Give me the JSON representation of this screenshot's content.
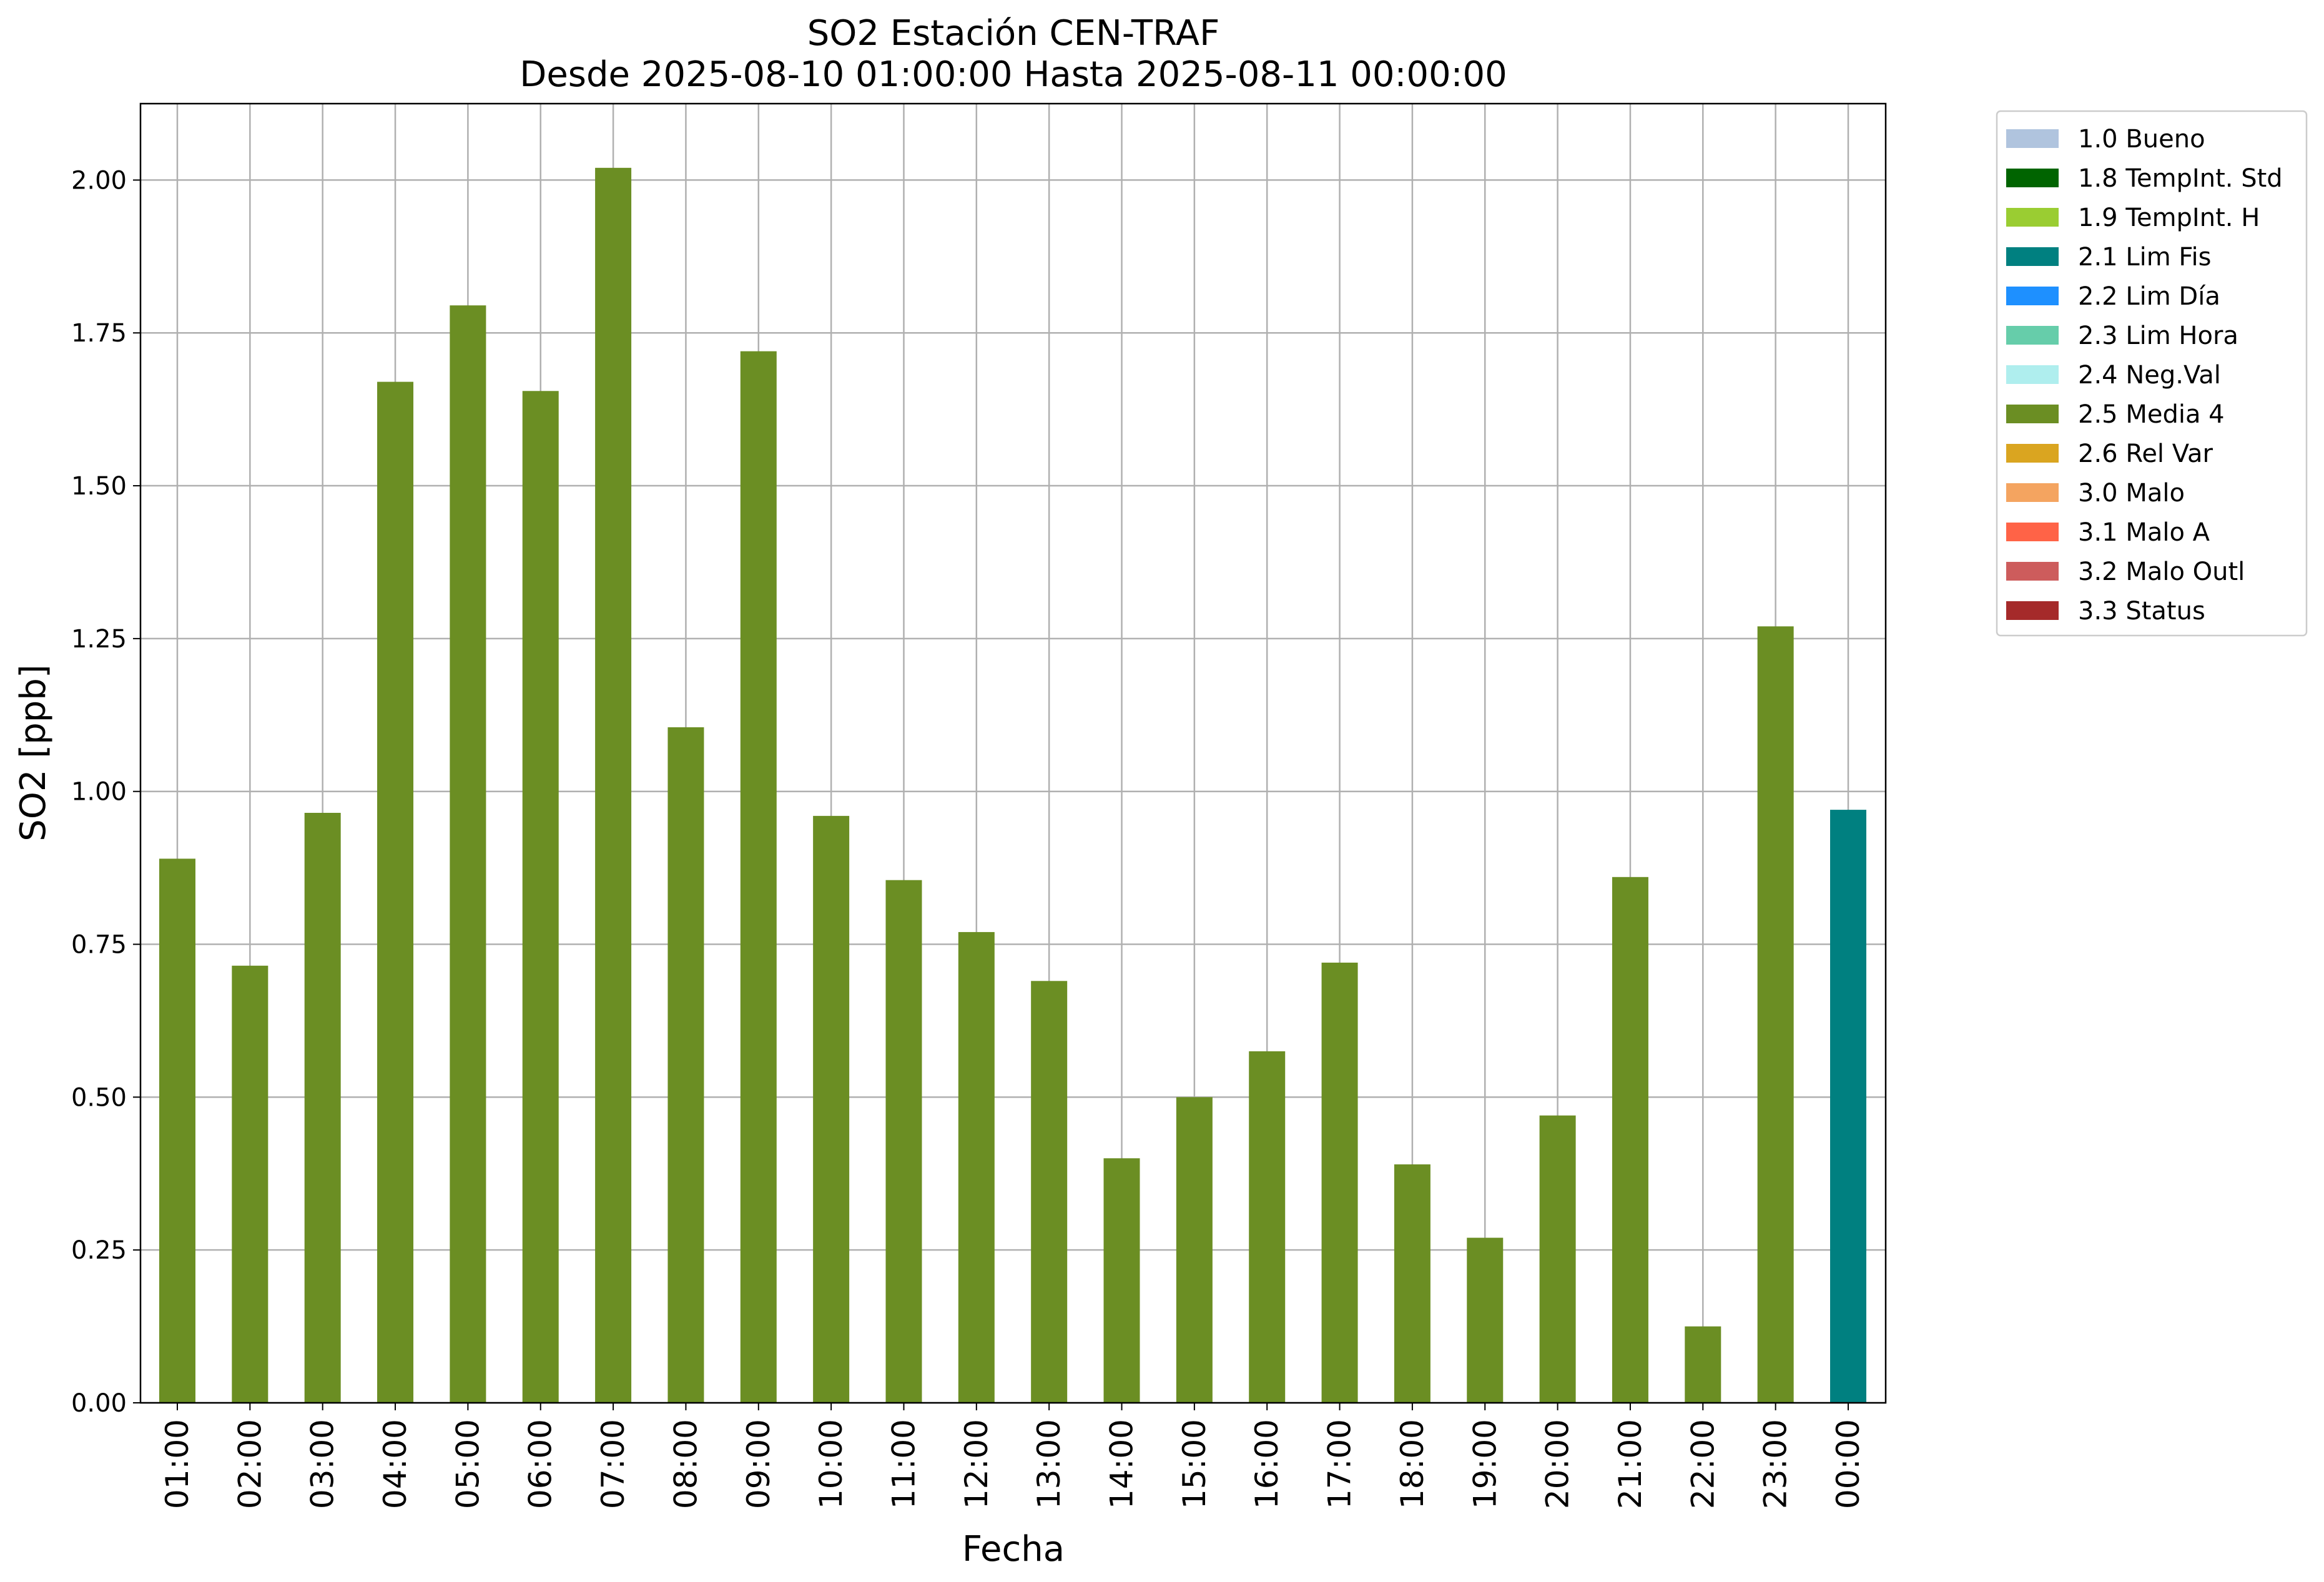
{
  "chart_data": {
    "type": "bar",
    "title": "SO2 Estación CEN-TRAF",
    "subtitle": "Desde 2025-08-10 01:00:00 Hasta 2025-08-11 00:00:00",
    "xlabel": "Fecha",
    "ylabel": "SO2 [ppb]",
    "ylim": [
      0,
      2.125
    ],
    "yticks": [
      "0.00",
      "0.25",
      "0.50",
      "0.75",
      "1.00",
      "1.25",
      "1.50",
      "1.75",
      "2.00"
    ],
    "grid": true,
    "legend_position": "outside-top-right",
    "categories": [
      "01:00",
      "02:00",
      "03:00",
      "04:00",
      "05:00",
      "06:00",
      "07:00",
      "08:00",
      "09:00",
      "10:00",
      "11:00",
      "12:00",
      "13:00",
      "14:00",
      "15:00",
      "16:00",
      "17:00",
      "18:00",
      "19:00",
      "20:00",
      "21:00",
      "22:00",
      "23:00",
      "00:00"
    ],
    "values": [
      0.89,
      0.715,
      0.965,
      1.67,
      1.795,
      1.655,
      2.02,
      1.105,
      1.72,
      0.96,
      0.855,
      0.77,
      0.69,
      0.4,
      0.5,
      0.575,
      0.72,
      0.39,
      0.27,
      0.47,
      0.86,
      0.125,
      1.27,
      0.97
    ],
    "bar_flags": [
      "2.5 Media 4",
      "2.5 Media 4",
      "2.5 Media 4",
      "2.5 Media 4",
      "2.5 Media 4",
      "2.5 Media 4",
      "2.5 Media 4",
      "2.5 Media 4",
      "2.5 Media 4",
      "2.5 Media 4",
      "2.5 Media 4",
      "2.5 Media 4",
      "2.5 Media 4",
      "2.5 Media 4",
      "2.5 Media 4",
      "2.5 Media 4",
      "2.5 Media 4",
      "2.5 Media 4",
      "2.5 Media 4",
      "2.5 Media 4",
      "2.5 Media 4",
      "2.5 Media 4",
      "2.5 Media 4",
      "2.1 Lim Fis"
    ],
    "legend": [
      {
        "label": "1.0 Bueno",
        "color": "#b0c4de"
      },
      {
        "label": "1.8 TempInt. Std",
        "color": "#006400"
      },
      {
        "label": "1.9 TempInt. H",
        "color": "#9acd32"
      },
      {
        "label": "2.1 Lim Fis",
        "color": "#008080"
      },
      {
        "label": "2.2 Lim Día",
        "color": "#1e90ff"
      },
      {
        "label": "2.3 Lim Hora",
        "color": "#66cdaa"
      },
      {
        "label": "2.4 Neg.Val",
        "color": "#afeeee"
      },
      {
        "label": "2.5 Media 4",
        "color": "#6b8e23"
      },
      {
        "label": "2.6 Rel Var",
        "color": "#daa520"
      },
      {
        "label": "3.0 Malo",
        "color": "#f4a460"
      },
      {
        "label": "3.1 Malo A",
        "color": "#ff6347"
      },
      {
        "label": "3.2 Malo Outl",
        "color": "#cd5c5c"
      },
      {
        "label": "3.3 Status",
        "color": "#a52a2a"
      }
    ]
  }
}
